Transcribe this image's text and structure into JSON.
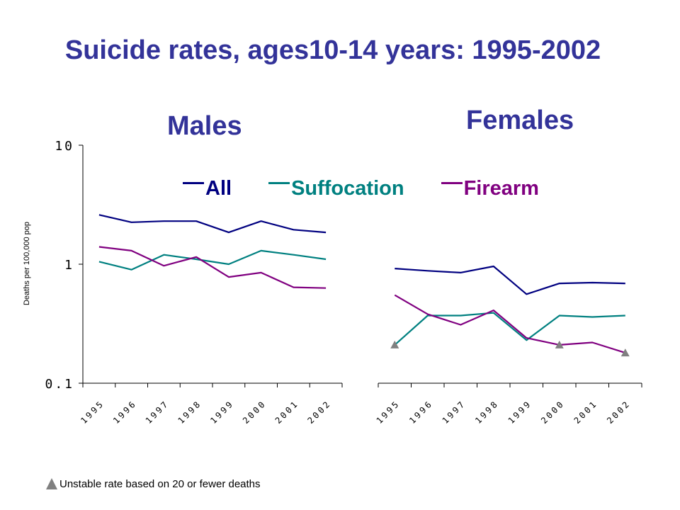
{
  "title": "Suicide rates, ages10-14 years: 1995-2002",
  "panels": {
    "males": "Males",
    "females": "Females"
  },
  "footnote": "Unstable rate based on 20 or fewer deaths",
  "chart_data": {
    "type": "line",
    "title": "Suicide rates, ages10-14 years: 1995-2002",
    "ylabel": "Deaths per 100,000 pop",
    "yscale": "log",
    "ylim": [
      0.1,
      10
    ],
    "y_ticks": [
      "10",
      "1",
      "0.1"
    ],
    "categories": [
      "1995",
      "1996",
      "1997",
      "1998",
      "1999",
      "2000",
      "2001",
      "2002"
    ],
    "legend": {
      "placement": "top",
      "entries": [
        "All",
        "Suffocation",
        "Firearm"
      ]
    },
    "colors": {
      "All": "#000080",
      "Suffocation": "#008080",
      "Firearm": "#800080"
    },
    "grid": false,
    "panels": [
      {
        "name": "Males",
        "series": [
          {
            "name": "All",
            "values": [
              2.6,
              2.25,
              2.3,
              2.3,
              1.85,
              2.3,
              1.95,
              1.85
            ]
          },
          {
            "name": "Suffocation",
            "values": [
              1.05,
              0.9,
              1.2,
              1.1,
              1.0,
              1.3,
              1.2,
              1.1
            ]
          },
          {
            "name": "Firearm",
            "values": [
              1.4,
              1.3,
              0.97,
              1.15,
              0.78,
              0.85,
              0.64,
              0.63
            ]
          }
        ],
        "unstable_markers": []
      },
      {
        "name": "Females",
        "series": [
          {
            "name": "All",
            "values": [
              0.92,
              0.88,
              0.85,
              0.96,
              0.56,
              0.69,
              0.7,
              0.69
            ]
          },
          {
            "name": "Suffocation",
            "values": [
              0.21,
              0.37,
              0.37,
              0.39,
              0.23,
              0.37,
              0.36,
              0.37
            ]
          },
          {
            "name": "Firearm",
            "values": [
              0.55,
              0.38,
              0.31,
              0.41,
              0.24,
              0.21,
              0.22,
              0.18
            ]
          }
        ],
        "unstable_markers": [
          {
            "series": "Suffocation",
            "year": "1995"
          },
          {
            "series": "Firearm",
            "year": "2000"
          },
          {
            "series": "Firearm",
            "year": "2002"
          }
        ]
      }
    ]
  }
}
